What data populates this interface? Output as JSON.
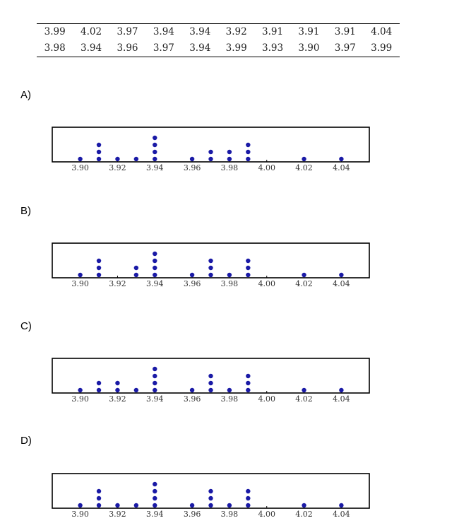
{
  "table": {
    "rows": [
      [
        "3.99",
        "4.02",
        "3.97",
        "3.94",
        "3.94",
        "3.92",
        "3.91",
        "3.91",
        "3.91",
        "4.04"
      ],
      [
        "3.98",
        "3.94",
        "3.96",
        "3.97",
        "3.94",
        "3.99",
        "3.93",
        "3.90",
        "3.97",
        "3.99"
      ]
    ]
  },
  "options": [
    {
      "label": "A)"
    },
    {
      "label": "B)"
    },
    {
      "label": "C)"
    },
    {
      "label": "D)"
    }
  ],
  "chart_data": [
    {
      "type": "scatter",
      "xlim": [
        3.885,
        4.055
      ],
      "xticks": [
        "3.90",
        "3.92",
        "3.94",
        "3.96",
        "3.98",
        "4.00",
        "4.02",
        "4.04"
      ],
      "points": [
        {
          "x": 3.9,
          "count": 1
        },
        {
          "x": 3.91,
          "count": 3
        },
        {
          "x": 3.92,
          "count": 1
        },
        {
          "x": 3.93,
          "count": 1
        },
        {
          "x": 3.94,
          "count": 4
        },
        {
          "x": 3.96,
          "count": 1
        },
        {
          "x": 3.97,
          "count": 2
        },
        {
          "x": 3.98,
          "count": 2
        },
        {
          "x": 3.99,
          "count": 3
        },
        {
          "x": 4.02,
          "count": 1
        },
        {
          "x": 4.04,
          "count": 1
        }
      ]
    },
    {
      "type": "scatter",
      "xlim": [
        3.885,
        4.055
      ],
      "xticks": [
        "3.90",
        "3.92",
        "3.94",
        "3.96",
        "3.98",
        "4.00",
        "4.02",
        "4.04"
      ],
      "points": [
        {
          "x": 3.9,
          "count": 1
        },
        {
          "x": 3.91,
          "count": 3
        },
        {
          "x": 3.93,
          "count": 2
        },
        {
          "x": 3.94,
          "count": 4
        },
        {
          "x": 3.96,
          "count": 1
        },
        {
          "x": 3.97,
          "count": 3
        },
        {
          "x": 3.98,
          "count": 1
        },
        {
          "x": 3.99,
          "count": 3
        },
        {
          "x": 4.02,
          "count": 1
        },
        {
          "x": 4.04,
          "count": 1
        }
      ]
    },
    {
      "type": "scatter",
      "xlim": [
        3.885,
        4.055
      ],
      "xticks": [
        "3.90",
        "3.92",
        "3.94",
        "3.96",
        "3.98",
        "4.00",
        "4.02",
        "4.04"
      ],
      "points": [
        {
          "x": 3.9,
          "count": 1
        },
        {
          "x": 3.91,
          "count": 2
        },
        {
          "x": 3.92,
          "count": 2
        },
        {
          "x": 3.93,
          "count": 1
        },
        {
          "x": 3.94,
          "count": 4
        },
        {
          "x": 3.96,
          "count": 1
        },
        {
          "x": 3.97,
          "count": 3
        },
        {
          "x": 3.98,
          "count": 1
        },
        {
          "x": 3.99,
          "count": 3
        },
        {
          "x": 4.02,
          "count": 1
        },
        {
          "x": 4.04,
          "count": 1
        }
      ]
    },
    {
      "type": "scatter",
      "xlim": [
        3.885,
        4.055
      ],
      "xticks": [
        "3.90",
        "3.92",
        "3.94",
        "3.96",
        "3.98",
        "4.00",
        "4.02",
        "4.04"
      ],
      "points": [
        {
          "x": 3.9,
          "count": 1
        },
        {
          "x": 3.91,
          "count": 3
        },
        {
          "x": 3.92,
          "count": 1
        },
        {
          "x": 3.93,
          "count": 1
        },
        {
          "x": 3.94,
          "count": 4
        },
        {
          "x": 3.96,
          "count": 1
        },
        {
          "x": 3.97,
          "count": 3
        },
        {
          "x": 3.98,
          "count": 1
        },
        {
          "x": 3.99,
          "count": 3
        },
        {
          "x": 4.02,
          "count": 1
        },
        {
          "x": 4.04,
          "count": 1
        }
      ]
    }
  ],
  "colors": {
    "dot": "#1a1aa6",
    "frame": "#000000"
  }
}
